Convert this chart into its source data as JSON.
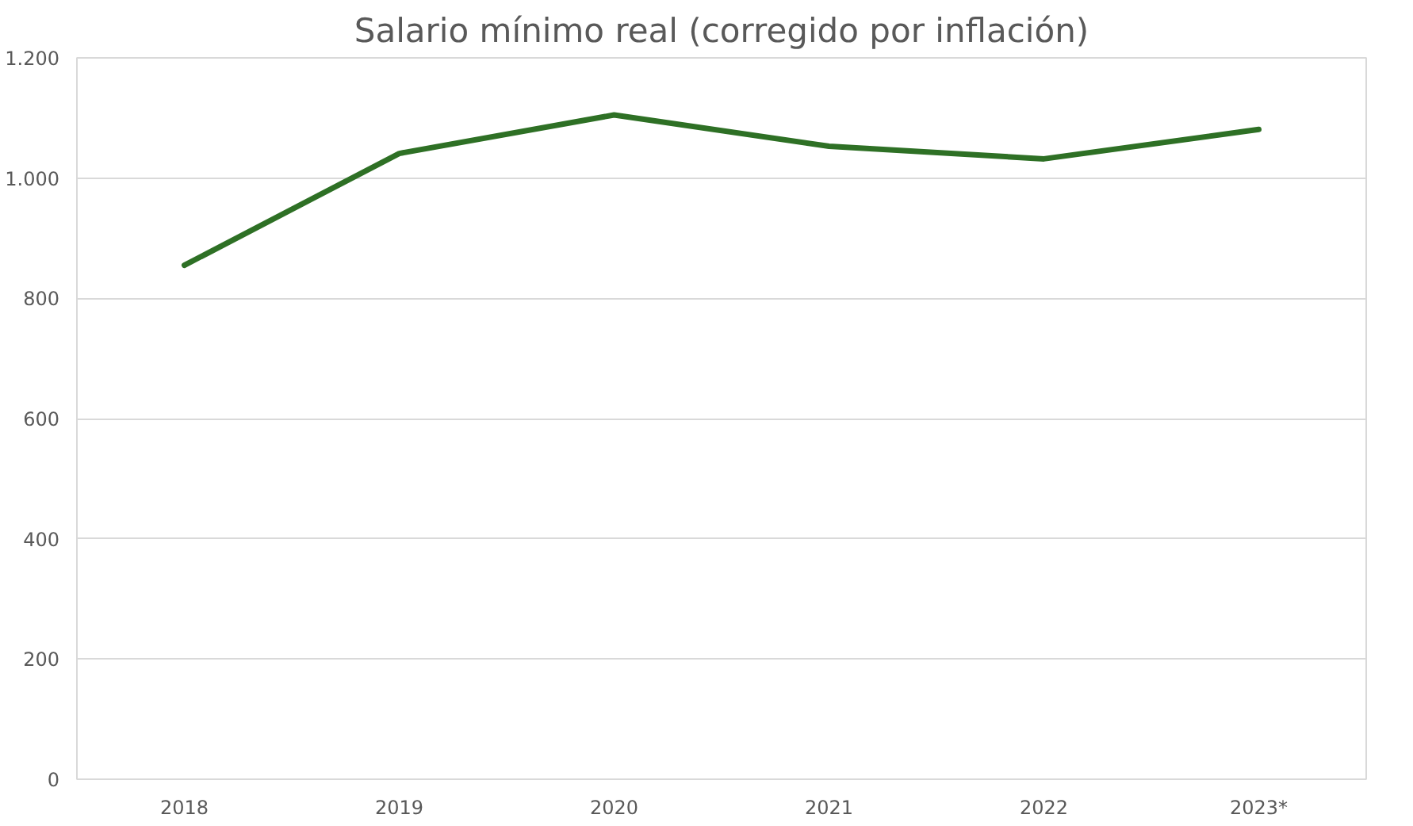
{
  "chart_data": {
    "type": "line",
    "title": "Salario mínimo real (corregido por inflación)",
    "categories": [
      "2018",
      "2019",
      "2020",
      "2021",
      "2022",
      "2023*"
    ],
    "series": [
      {
        "color": "#2e7025",
        "values": [
          855,
          1041,
          1105,
          1053,
          1032,
          1081
        ]
      }
    ],
    "ylim": [
      0,
      1200
    ],
    "yticks": [
      0,
      200,
      400,
      600,
      800,
      {
        "value": 1000,
        "label": "1.000"
      },
      {
        "value": 1200,
        "label": "1.200"
      }
    ],
    "grid": "y",
    "line_style": "solid"
  }
}
